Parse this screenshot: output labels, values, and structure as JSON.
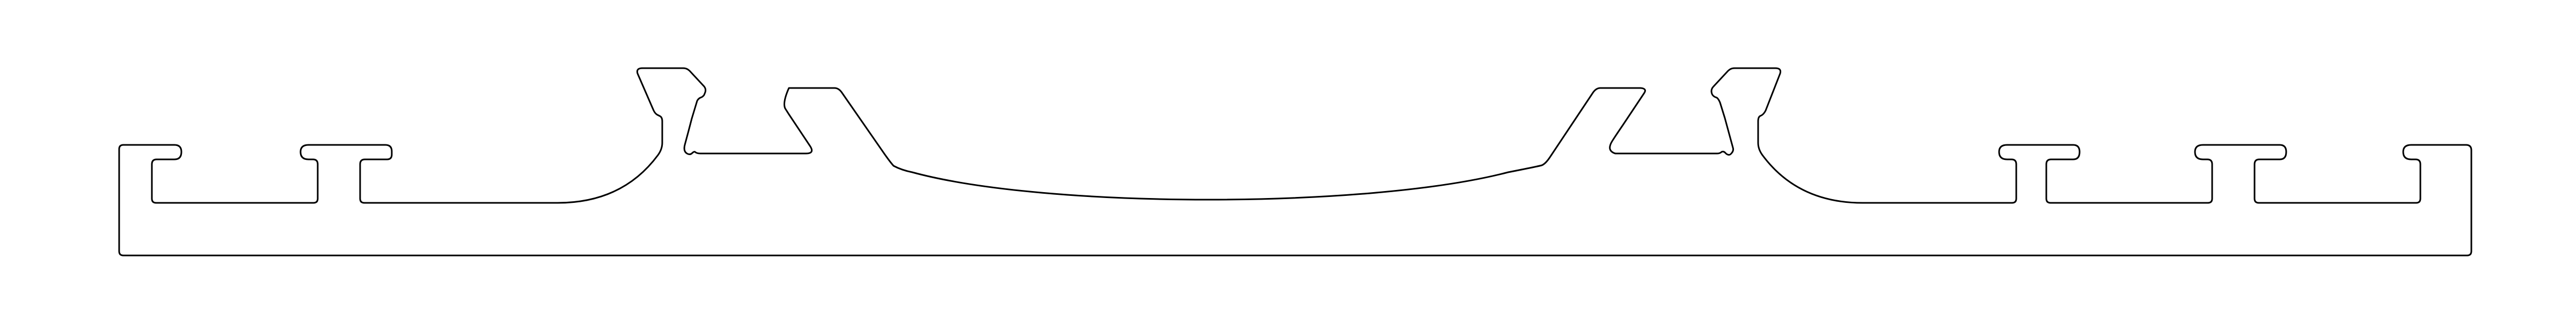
{
  "drawing": {
    "background_color": "#ffffff",
    "line_color": "#000000",
    "subject": "extrusion-profile-cross-section"
  }
}
